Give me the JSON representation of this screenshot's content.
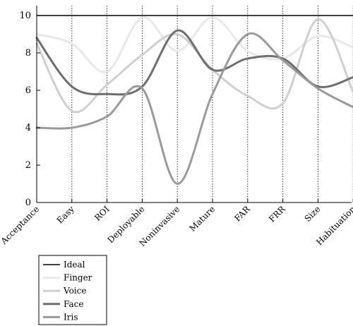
{
  "chart_data": {
    "type": "line",
    "categories": [
      "Acceptance",
      "Easy",
      "ROI",
      "Deployable",
      "Noninvasive",
      "Mature",
      "FAR",
      "FRR",
      "Size",
      "Habituation"
    ],
    "ylim": [
      0,
      10
    ],
    "yticks": [
      0,
      2,
      4,
      6,
      8,
      10
    ],
    "grid": "vertical-dotted",
    "legend_position": "bottom-left",
    "series": [
      {
        "name": "Ideal",
        "color": "#000000",
        "values": [
          10,
          10,
          10,
          10,
          10,
          10,
          10,
          10,
          10,
          10
        ]
      },
      {
        "name": "Finger",
        "color": "#e8e8e8",
        "values": [
          9.0,
          8.5,
          7.0,
          9.9,
          8.1,
          9.9,
          8.1,
          7.7,
          8.9,
          8.3
        ]
      },
      {
        "name": "Voice",
        "color": "#cfcfcf",
        "values": [
          8.5,
          4.9,
          6.3,
          7.9,
          9.0,
          7.1,
          5.7,
          5.3,
          9.8,
          5.9
        ]
      },
      {
        "name": "Face",
        "color": "#6e6e6e",
        "values": [
          8.8,
          6.2,
          5.8,
          6.2,
          9.2,
          7.1,
          7.7,
          7.7,
          6.2,
          6.7
        ]
      },
      {
        "name": "Iris",
        "color": "#9a9a9a",
        "values": [
          4.0,
          4.0,
          4.6,
          6.1,
          1.0,
          5.8,
          9.0,
          7.6,
          6.1,
          5.1
        ]
      }
    ]
  }
}
